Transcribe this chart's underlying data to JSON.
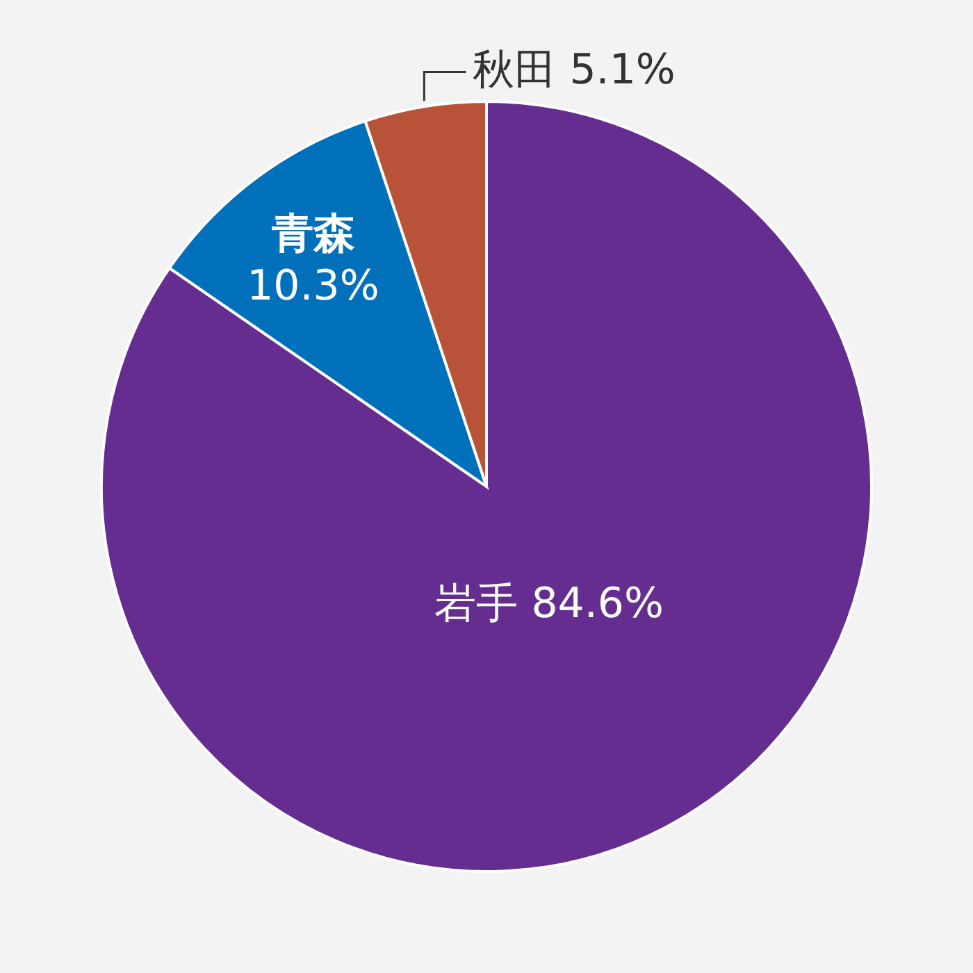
{
  "chart_data": {
    "type": "pie",
    "categories": [
      "岩手",
      "青森",
      "秋田"
    ],
    "values": [
      84.6,
      10.3,
      5.1
    ],
    "colors": [
      "#662d91",
      "#0070bb",
      "#b8533a"
    ],
    "value_labels": [
      "84.6%",
      "10.3%",
      "5.1%"
    ]
  }
}
